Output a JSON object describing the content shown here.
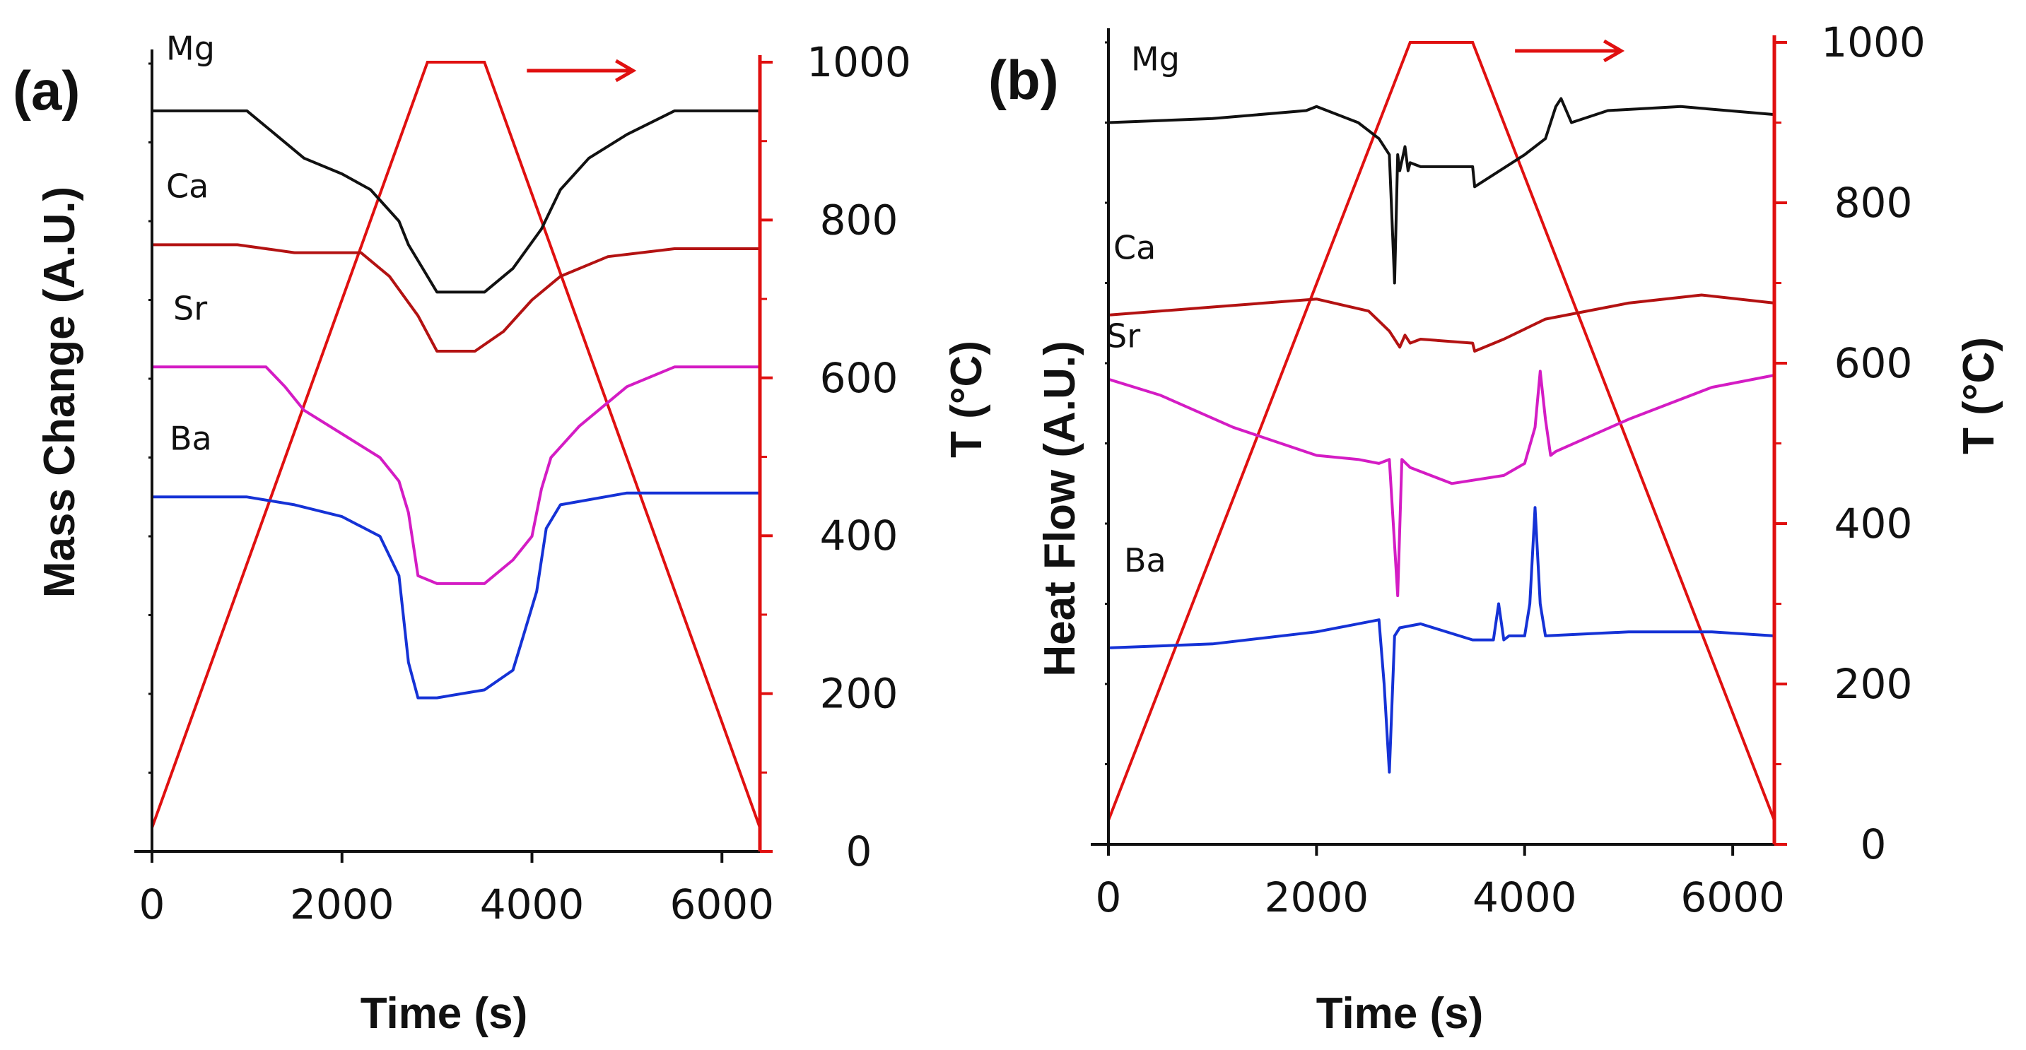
{
  "figure": {
    "panels": [
      "(a)",
      "(b)"
    ]
  },
  "colors": {
    "temperature": "#e01010",
    "Mg": "#111111",
    "Ca": "#b31212",
    "Sr": "#d41cc4",
    "Ba": "#1532d6",
    "axis": "#111111"
  },
  "chart_data": [
    {
      "type": "line",
      "panel": "(a)",
      "title": "",
      "xlabel": "Time (s)",
      "ylabel": "Mass Change (A.U.)",
      "y2label": "T (°C)",
      "xlim": [
        0,
        6400
      ],
      "x_ticks": [
        "0",
        "2000",
        "4000",
        "6000"
      ],
      "y2lim": [
        0,
        1000
      ],
      "y2_ticks": [
        "0",
        "200",
        "400",
        "600",
        "800",
        "1000"
      ],
      "ylim": [
        0,
        100
      ],
      "arrow": "right",
      "temperature": {
        "name": "T",
        "x": [
          0,
          2900,
          3500,
          6400
        ],
        "values": [
          30,
          1000,
          1000,
          30
        ]
      },
      "series": [
        {
          "name": "Mg",
          "x": [
            0,
            1000,
            1300,
            1600,
            2000,
            2300,
            2600,
            2700,
            2850,
            3000,
            3500,
            3800,
            4100,
            4300,
            4600,
            5000,
            5500,
            6000,
            6400
          ],
          "values": [
            94,
            94,
            91,
            88,
            86,
            84,
            80,
            77,
            74,
            71,
            71,
            74,
            79,
            84,
            88,
            91,
            94,
            94,
            94
          ]
        },
        {
          "name": "Ca",
          "x": [
            0,
            900,
            1500,
            2200,
            2500,
            2800,
            3000,
            3400,
            3700,
            4000,
            4300,
            4800,
            5500,
            6400
          ],
          "values": [
            77,
            77,
            76,
            76,
            73,
            68,
            63.5,
            63.5,
            66,
            70,
            73,
            75.5,
            76.5,
            76.5
          ]
        },
        {
          "name": "Sr",
          "x": [
            0,
            1200,
            1400,
            1600,
            2000,
            2400,
            2600,
            2700,
            2800,
            3000,
            3500,
            3800,
            4000,
            4100,
            4200,
            4500,
            5000,
            5500,
            6400
          ],
          "values": [
            61.5,
            61.5,
            59,
            56,
            53,
            50,
            47,
            43,
            35,
            34,
            34,
            37,
            40,
            46,
            50,
            54,
            59,
            61.5,
            61.5
          ]
        },
        {
          "name": "Ba",
          "x": [
            0,
            1000,
            1500,
            2000,
            2400,
            2600,
            2700,
            2800,
            3000,
            3500,
            3800,
            3900,
            4050,
            4150,
            4300,
            5000,
            6400
          ],
          "values": [
            45,
            45,
            44,
            42.5,
            40,
            35,
            24,
            19.5,
            19.5,
            20.5,
            23,
            27,
            33,
            41,
            44,
            45.5,
            45.5
          ]
        }
      ],
      "annotations": [
        "Mg",
        "Ca",
        "Sr",
        "Ba"
      ]
    },
    {
      "type": "line",
      "panel": "(b)",
      "title": "",
      "xlabel": "Time (s)",
      "ylabel": "Heat Flow (A.U.)",
      "y2label": "T (°C)",
      "xlim": [
        0,
        6400
      ],
      "x_ticks": [
        "0",
        "2000",
        "4000",
        "6000"
      ],
      "y2lim": [
        0,
        1000
      ],
      "y2_ticks": [
        "0",
        "200",
        "400",
        "600",
        "800",
        "1000"
      ],
      "ylim": [
        0,
        100
      ],
      "arrow": "right",
      "temperature": {
        "name": "T",
        "x": [
          0,
          2900,
          3500,
          6400
        ],
        "values": [
          30,
          1000,
          1000,
          30
        ]
      },
      "series": [
        {
          "name": "Mg",
          "x": [
            0,
            1000,
            1900,
            2000,
            2400,
            2600,
            2700,
            2750,
            2780,
            2800,
            2850,
            2880,
            2900,
            3000,
            3500,
            3520,
            3700,
            4000,
            4200,
            4300,
            4350,
            4450,
            4800,
            5500,
            6400
          ],
          "values": [
            90,
            90.5,
            91.5,
            92,
            90,
            88,
            86,
            70,
            86,
            84,
            87,
            84,
            85,
            84.5,
            84.5,
            82,
            83.5,
            86,
            88,
            92,
            93,
            90,
            91.5,
            92,
            91
          ]
        },
        {
          "name": "Ca",
          "x": [
            0,
            1000,
            2000,
            2500,
            2700,
            2800,
            2850,
            2900,
            3000,
            3500,
            3520,
            3800,
            4200,
            5000,
            5700,
            6400
          ],
          "values": [
            66,
            67,
            68,
            66.5,
            64,
            62,
            63.5,
            62.5,
            63,
            62.5,
            61.5,
            63,
            65.5,
            67.5,
            68.5,
            67.5
          ]
        },
        {
          "name": "Sr",
          "x": [
            0,
            500,
            1200,
            2000,
            2400,
            2600,
            2700,
            2780,
            2820,
            2900,
            3300,
            3800,
            4000,
            4100,
            4150,
            4200,
            4250,
            4300,
            5000,
            5800,
            6400
          ],
          "values": [
            58,
            56,
            52,
            48.5,
            48,
            47.5,
            48,
            31,
            48,
            47,
            45,
            46,
            47.5,
            52,
            59,
            53,
            48.5,
            49,
            53,
            57,
            58.5
          ]
        },
        {
          "name": "Ba",
          "x": [
            0,
            1000,
            2000,
            2600,
            2650,
            2700,
            2750,
            2800,
            3000,
            3500,
            3600,
            3700,
            3750,
            3800,
            3850,
            4000,
            4050,
            4100,
            4150,
            4200,
            5000,
            5800,
            6400
          ],
          "values": [
            24.5,
            25,
            26.5,
            28,
            20,
            9,
            26,
            27,
            27.5,
            25.5,
            25.5,
            25.5,
            30,
            25.5,
            26,
            26,
            30,
            42,
            30,
            26,
            26.5,
            26.5,
            26
          ]
        }
      ],
      "annotations": [
        "Mg",
        "Ca",
        "Sr",
        "Ba"
      ]
    }
  ]
}
